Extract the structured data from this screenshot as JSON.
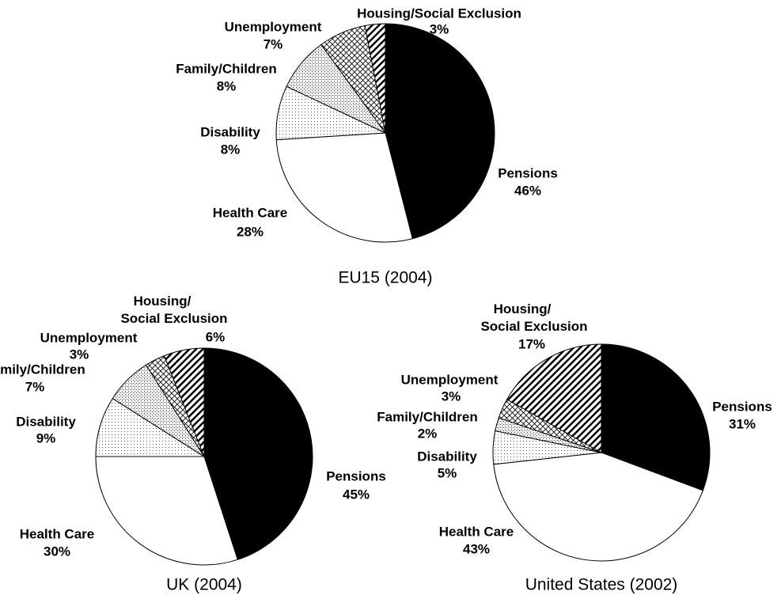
{
  "chart_data": [
    {
      "type": "pie",
      "title": "EU15 (2004)",
      "categories": [
        "Pensions",
        "Health Care",
        "Disability",
        "Family/Children",
        "Unemployment",
        "Housing/Social Exclusion"
      ],
      "values": [
        46,
        28,
        8,
        8,
        7,
        3
      ],
      "value_labels": [
        "46%",
        "28%",
        "8%",
        "8%",
        "7%",
        "3%"
      ]
    },
    {
      "type": "pie",
      "title": "UK (2004)",
      "categories": [
        "Pensions",
        "Health Care",
        "Disability",
        "Family/Children",
        "Unemployment",
        "Housing/Social Exclusion"
      ],
      "values": [
        45,
        30,
        9,
        7,
        3,
        6
      ],
      "value_labels": [
        "45%",
        "30%",
        "9%",
        "7%",
        "3%",
        "6%"
      ]
    },
    {
      "type": "pie",
      "title": "United States (2002)",
      "categories": [
        "Pensions",
        "Health Care",
        "Disability",
        "Family/Children",
        "Unemployment",
        "Housing/Social Exclusion"
      ],
      "values": [
        31,
        43,
        5,
        2,
        3,
        17
      ],
      "value_labels": [
        "31%",
        "43%",
        "5%",
        "2%",
        "3%",
        "17%"
      ]
    }
  ]
}
